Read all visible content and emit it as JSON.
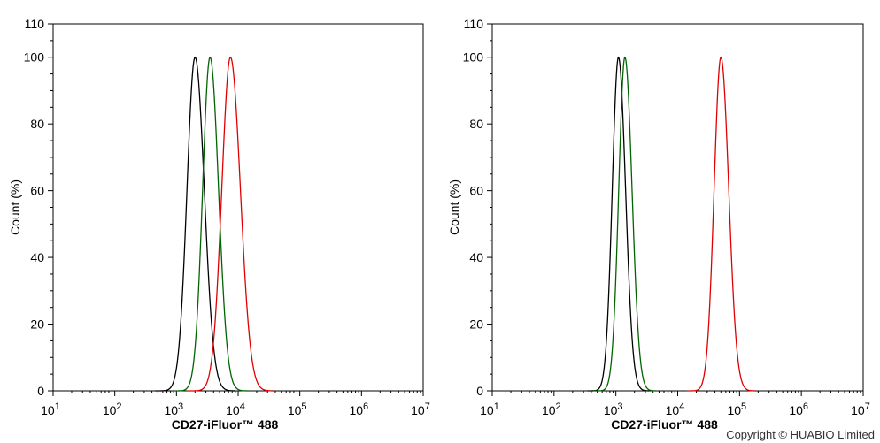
{
  "copyright": "Copyright © HUABIO Limited",
  "chart_data": [
    {
      "type": "line",
      "title": "",
      "xlabel": "CD27-iFluor™ 488",
      "ylabel": "Count (%)",
      "x_scale": "log",
      "xlim": [
        10,
        10000000
      ],
      "ylim": [
        0,
        110
      ],
      "x_ticks": [
        {
          "base": "10",
          "exp": "1"
        },
        {
          "base": "10",
          "exp": "2"
        },
        {
          "base": "10",
          "exp": "3"
        },
        {
          "base": "10",
          "exp": "4"
        },
        {
          "base": "10",
          "exp": "5"
        },
        {
          "base": "10",
          "exp": "6"
        },
        {
          "base": "10",
          "exp": "7"
        }
      ],
      "y_ticks": [
        "0",
        "20",
        "40",
        "60",
        "80",
        "100",
        "110"
      ],
      "grid": false,
      "series": [
        {
          "color": "#000000",
          "peak": 2000,
          "width": 0.13,
          "x": [
            300,
            600,
            1000,
            1500,
            2000,
            2600,
            3300,
            5000
          ],
          "y": [
            0,
            3,
            25,
            80,
            100,
            70,
            15,
            0
          ]
        },
        {
          "color": "#006400",
          "peak": 3500,
          "width": 0.12,
          "x": [
            700,
            1500,
            2300,
            3500,
            4500,
            5500,
            8000
          ],
          "y": [
            0,
            5,
            50,
            100,
            65,
            20,
            0
          ]
        },
        {
          "color": "#e00000",
          "peak": 7500,
          "width": 0.14,
          "x": [
            1500,
            4000,
            6000,
            7500,
            10000,
            18000,
            80000
          ],
          "y": [
            0,
            10,
            70,
            100,
            65,
            5,
            0
          ]
        }
      ]
    },
    {
      "type": "line",
      "title": "",
      "xlabel": "CD27-iFluor™ 488",
      "ylabel": "Count (%)",
      "x_scale": "log",
      "xlim": [
        10,
        10000000
      ],
      "ylim": [
        0,
        110
      ],
      "x_ticks": [
        {
          "base": "10",
          "exp": "1"
        },
        {
          "base": "10",
          "exp": "2"
        },
        {
          "base": "10",
          "exp": "3"
        },
        {
          "base": "10",
          "exp": "4"
        },
        {
          "base": "10",
          "exp": "5"
        },
        {
          "base": "10",
          "exp": "6"
        },
        {
          "base": "10",
          "exp": "7"
        }
      ],
      "y_ticks": [
        "0",
        "20",
        "40",
        "60",
        "80",
        "100",
        "110"
      ],
      "grid": false,
      "series": [
        {
          "color": "#000000",
          "peak": 1100,
          "width": 0.1,
          "x": [
            300,
            600,
            900,
            1100,
            1400,
            2000,
            3000
          ],
          "y": [
            0,
            10,
            75,
            100,
            60,
            5,
            0
          ]
        },
        {
          "color": "#006400",
          "peak": 1400,
          "width": 0.1,
          "x": [
            300,
            800,
            1200,
            1400,
            1800,
            2400,
            3500
          ],
          "y": [
            0,
            15,
            80,
            100,
            55,
            5,
            0
          ]
        },
        {
          "color": "#e00000",
          "peak": 50000,
          "width": 0.11,
          "x": [
            10000,
            25000,
            40000,
            50000,
            70000,
            100000,
            200000
          ],
          "y": [
            0,
            12,
            75,
            100,
            60,
            10,
            0
          ]
        }
      ]
    }
  ]
}
